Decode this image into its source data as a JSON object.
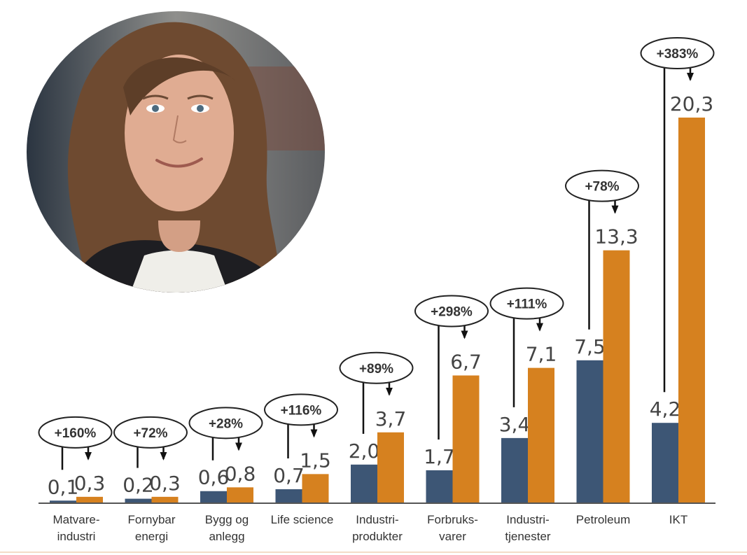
{
  "photo": {
    "subject": "portrait-photo"
  },
  "colors": {
    "before": "#3d5675",
    "after": "#d6811f",
    "axis": "#555555",
    "arrow": "#111111"
  },
  "chart_data": {
    "type": "bar",
    "categories": [
      [
        "Matvare-",
        "industri"
      ],
      [
        "Fornybar",
        "energi"
      ],
      [
        "Bygg og",
        "anlegg"
      ],
      [
        "Life science"
      ],
      [
        "Industri-",
        "produkter"
      ],
      [
        "Forbruks-",
        "varer"
      ],
      [
        "Industri-",
        "tjenester"
      ],
      [
        "Petroleum"
      ],
      [
        "IKT"
      ]
    ],
    "series": [
      {
        "values": [
          0.1,
          0.2,
          0.6,
          0.7,
          2.0,
          1.7,
          3.4,
          7.5,
          4.2
        ],
        "labels": [
          "0,1",
          "0,2",
          "0,6",
          "0,7",
          "2,0",
          "1,7",
          "3,4",
          "7,5",
          "4,2"
        ]
      },
      {
        "values": [
          0.3,
          0.3,
          0.8,
          1.5,
          3.7,
          6.7,
          7.1,
          13.3,
          20.3
        ],
        "labels": [
          "0,3",
          "0,3",
          "0,8",
          "1,5",
          "3,7",
          "6,7",
          "7,1",
          "13,3",
          "20,3"
        ]
      }
    ],
    "growth_labels": [
      "+160%",
      "+72%",
      "+28%",
      "+116%",
      "+89%",
      "+298%",
      "+111%",
      "+78%",
      "+383%"
    ],
    "ylim": [
      0,
      20.3
    ],
    "grid": false
  }
}
